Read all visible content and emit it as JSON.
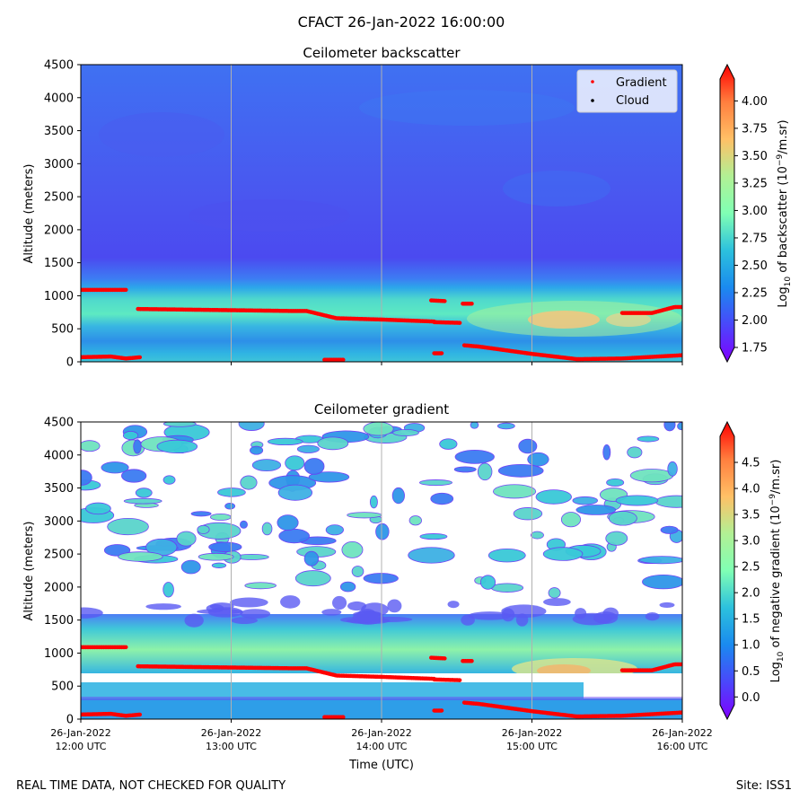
{
  "figure_title": "CFACT 26-Jan-2022 16:00:00",
  "footer": {
    "left": "REAL TIME DATA, NOT CHECKED FOR QUALITY",
    "right": "Site: ISS1"
  },
  "x_axis_label": "Time (UTC)",
  "chart_data": [
    {
      "type": "heatmap",
      "title": "Ceilometer backscatter",
      "ylabel": "Altitude (meters)",
      "xlabel": "Time (UTC)",
      "x_range_hours": [
        12,
        16
      ],
      "ylim": [
        0,
        4500
      ],
      "x_ticks": [
        {
          "hour": 12,
          "date": "26-Jan-2022",
          "time": "12:00 UTC"
        },
        {
          "hour": 13,
          "date": "26-Jan-2022",
          "time": "13:00 UTC"
        },
        {
          "hour": 14,
          "date": "26-Jan-2022",
          "time": "14:00 UTC"
        },
        {
          "hour": 15,
          "date": "26-Jan-2022",
          "time": "15:00 UTC"
        },
        {
          "hour": 16,
          "date": "26-Jan-2022",
          "time": "16:00 UTC"
        }
      ],
      "y_ticks": [
        0,
        500,
        1000,
        1500,
        2000,
        2500,
        3000,
        3500,
        4000,
        4500
      ],
      "colorbar": {
        "label": "Log10 of backscatter (10^-9/m.sr)",
        "label_main": "Log",
        "label_sub": "10",
        "label_mid": " of backscatter (10",
        "label_sup": "−9",
        "label_end": "/m.sr)",
        "range": [
          1.75,
          4.2
        ],
        "ticks": [
          "1.75",
          "2.00",
          "2.25",
          "2.50",
          "2.75",
          "3.00",
          "3.25",
          "3.50",
          "3.75",
          "4.00"
        ],
        "colormap": "rainbow"
      },
      "legend": {
        "placement": "top-right",
        "entries": [
          {
            "label": "Gradient",
            "color": "#ff0000"
          },
          {
            "label": "Cloud",
            "color": "#000000"
          }
        ]
      },
      "gradient_series": [
        {
          "hours": [
            12.0,
            12.3
          ],
          "altitude": [
            1090,
            1090
          ]
        },
        {
          "hours": [
            12.38,
            13.4,
            13.5,
            13.7,
            14.0,
            14.35
          ],
          "altitude": [
            800,
            770,
            770,
            660,
            640,
            610
          ]
        },
        {
          "hours": [
            14.35,
            14.52
          ],
          "altitude": [
            600,
            590
          ]
        },
        {
          "hours": [
            14.33,
            14.42
          ],
          "altitude": [
            930,
            920
          ]
        },
        {
          "hours": [
            14.54,
            14.6
          ],
          "altitude": [
            880,
            880
          ]
        },
        {
          "hours": [
            14.55,
            14.65,
            15.0,
            15.3,
            15.6,
            16.0
          ],
          "altitude": [
            250,
            230,
            120,
            40,
            50,
            100
          ]
        },
        {
          "hours": [
            12.0,
            12.2,
            12.3,
            12.4
          ],
          "altitude": [
            70,
            80,
            50,
            70
          ]
        },
        {
          "hours": [
            13.62,
            13.75
          ],
          "altitude": [
            30,
            30
          ]
        },
        {
          "hours": [
            14.35,
            14.4
          ],
          "altitude": [
            130,
            130
          ]
        },
        {
          "hours": [
            15.6,
            15.8,
            15.95,
            16.0
          ],
          "altitude": [
            740,
            740,
            830,
            830
          ]
        }
      ]
    },
    {
      "type": "heatmap",
      "title": "Ceilometer gradient",
      "ylabel": "Altitude (meters)",
      "xlabel": "Time (UTC)",
      "x_range_hours": [
        12,
        16
      ],
      "ylim": [
        0,
        4500
      ],
      "y_ticks": [
        0,
        500,
        1000,
        1500,
        2000,
        2500,
        3000,
        3500,
        4000,
        4500
      ],
      "colorbar": {
        "label": "Log10 of negative gradient (10^-9/m.sr)",
        "label_main": "Log",
        "label_sub": "10",
        "label_mid": " of negative gradient (10",
        "label_sup": "−9",
        "label_end": "/m.sr)",
        "range": [
          -0.15,
          5.0
        ],
        "ticks": [
          "0.0",
          "0.5",
          "1.0",
          "1.5",
          "2.0",
          "2.5",
          "3.0",
          "3.5",
          "4.0",
          "4.5"
        ],
        "colormap": "rainbow"
      }
    }
  ]
}
